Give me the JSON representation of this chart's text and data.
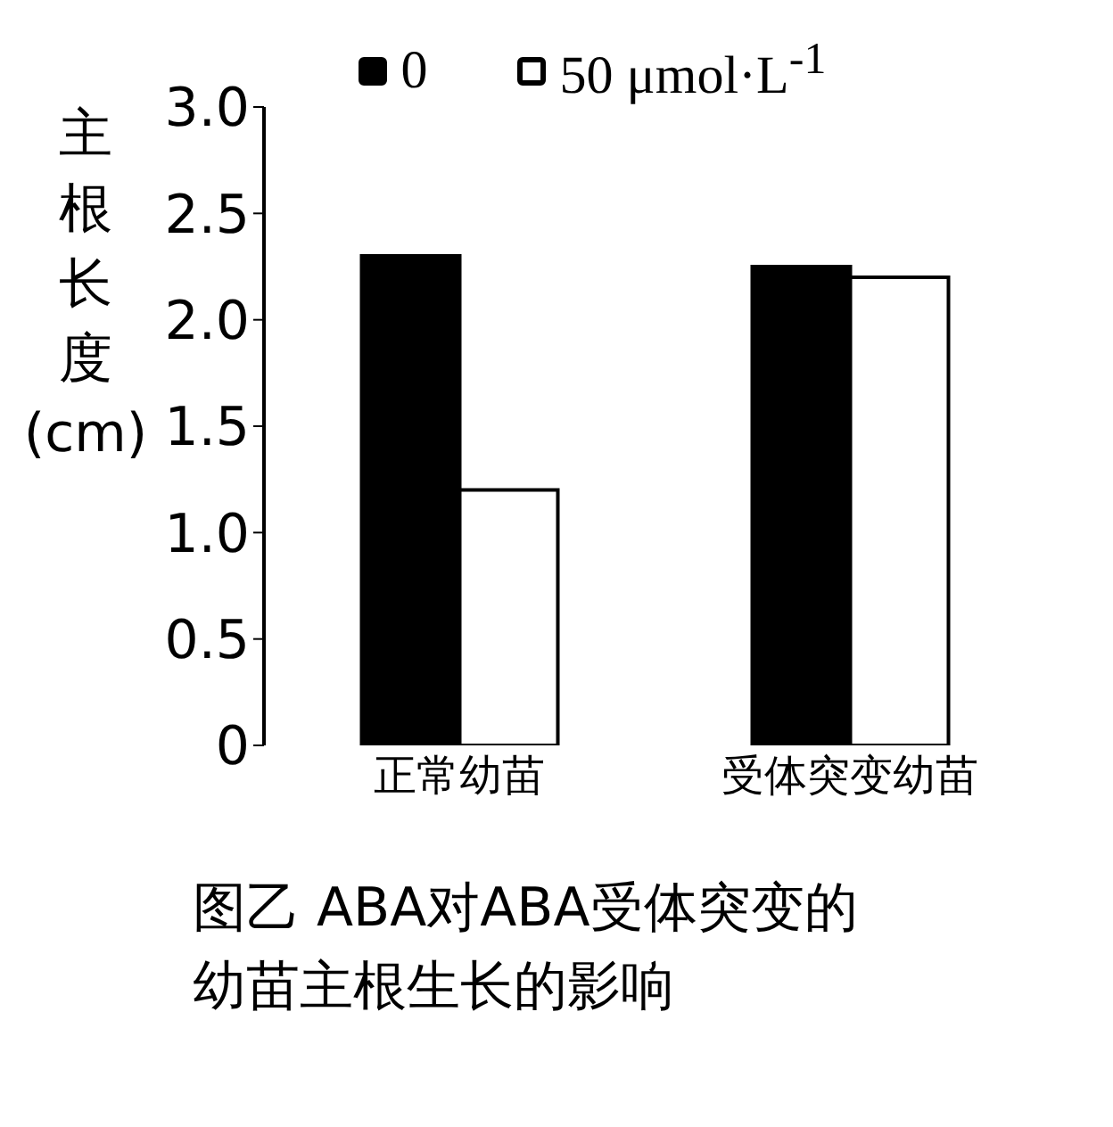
{
  "chart_data": {
    "type": "bar",
    "title": "图乙 ABA对ABA受体突变的幼苗主根生长的影响",
    "ylabel": "主根长度(cm)",
    "categories": [
      "正常幼苗",
      "受体突变幼苗"
    ],
    "series": [
      {
        "name": "0",
        "color": "#000000",
        "values": [
          2.3,
          2.25
        ]
      },
      {
        "name": "50 μmol·L$^{-1}$",
        "color": "#ffffff",
        "values": [
          1.2,
          2.2
        ]
      }
    ],
    "ylim": [
      0,
      3
    ],
    "yticks": [
      0,
      0.5,
      {
        "value": 1,
        "label": "1.0"
      },
      1.5,
      {
        "value": 2,
        "label": "2.0"
      },
      2.5,
      {
        "value": 3,
        "label": "3.0"
      }
    ],
    "grid": false,
    "legend": "top"
  }
}
